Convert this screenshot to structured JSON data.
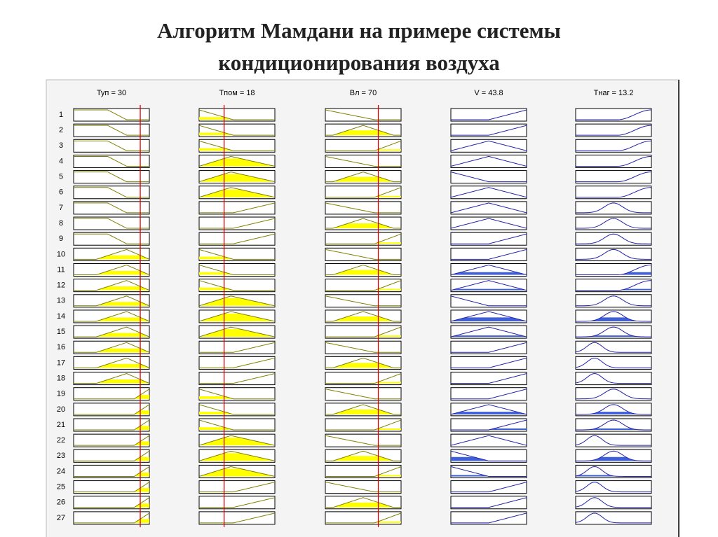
{
  "header": {
    "title_line1": "Алгоритм Мамдани на примере системы",
    "title_line2": "кондиционирования воздуха"
  },
  "viewer": {
    "columns": [
      "Туп = 30",
      "Tпом = 18",
      "Вл = 70",
      "V = 43.8",
      "Тнаг = 13.2"
    ],
    "rows": [
      "1",
      "2",
      "3",
      "4",
      "5",
      "6",
      "7",
      "8",
      "9",
      "10",
      "11",
      "12",
      "13",
      "14",
      "15",
      "16",
      "17",
      "18",
      "19",
      "20",
      "21",
      "22",
      "23",
      "24",
      "25",
      "26",
      "27"
    ]
  }
}
